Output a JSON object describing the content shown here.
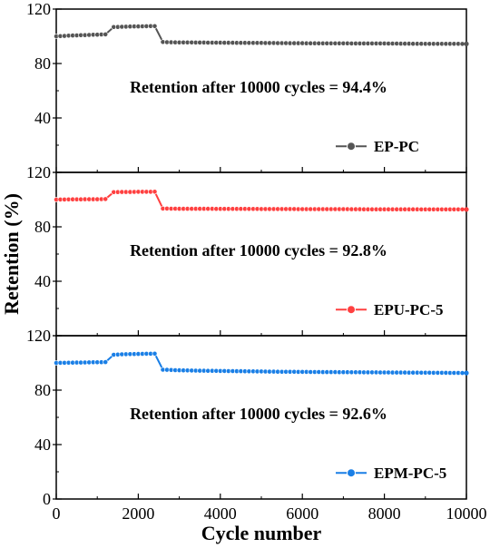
{
  "chart_data": {
    "type": "line",
    "layout": "stacked-panels-shared-x",
    "xlabel": "Cycle number",
    "ylabel": "Retention (%)",
    "xlim": [
      0,
      10000
    ],
    "xticks": [
      0,
      2000,
      4000,
      6000,
      8000,
      10000
    ],
    "ylim": [
      0,
      120
    ],
    "yticks": [
      0,
      40,
      80,
      120
    ],
    "grid": false,
    "legend_position": "bottom-right",
    "marker": "circle",
    "panels": [
      {
        "series_name": "EP-PC",
        "color": "#555555",
        "annotation": "Retention after 10000 cycles = 94.4%",
        "x": [
          0,
          200,
          400,
          600,
          800,
          1000,
          1200,
          1400,
          1600,
          1800,
          2000,
          2200,
          2400,
          2600,
          2800,
          3000,
          3500,
          4000,
          4500,
          5000,
          5500,
          6000,
          6500,
          7000,
          7500,
          8000,
          8500,
          9000,
          9500,
          10000
        ],
        "y": [
          100,
          100.3,
          100.6,
          100.8,
          101,
          101.2,
          101.4,
          106.8,
          107,
          107.2,
          107.3,
          107.4,
          107.5,
          95.8,
          95.6,
          95.5,
          95.4,
          95.3,
          95.2,
          95.1,
          95.0,
          94.9,
          94.8,
          94.8,
          94.7,
          94.7,
          94.6,
          94.5,
          94.5,
          94.4
        ]
      },
      {
        "series_name": "EPU-PC-5",
        "color": "#ff4040",
        "annotation": "Retention after 10000 cycles = 92.8%",
        "x": [
          0,
          200,
          400,
          600,
          800,
          1000,
          1200,
          1400,
          1600,
          1800,
          2000,
          2200,
          2400,
          2600,
          3000,
          3500,
          4000,
          4500,
          5000,
          5500,
          6000,
          6500,
          7000,
          7500,
          8000,
          8500,
          9000,
          9500,
          10000
        ],
        "y": [
          100,
          100.1,
          100.2,
          100.2,
          100.3,
          100.3,
          100.4,
          105.5,
          105.6,
          105.6,
          105.7,
          105.7,
          105.8,
          93.4,
          93.3,
          93.3,
          93.2,
          93.2,
          93.1,
          93.1,
          93.0,
          93.0,
          93.0,
          92.9,
          92.9,
          92.9,
          92.8,
          92.8,
          92.8
        ]
      },
      {
        "series_name": "EPM-PC-5",
        "color": "#1a7fe6",
        "annotation": "Retention after 10000 cycles = 92.6%",
        "x": [
          0,
          200,
          400,
          600,
          800,
          1000,
          1200,
          1400,
          1600,
          1800,
          2000,
          2200,
          2400,
          2600,
          3000,
          3500,
          4000,
          4500,
          5000,
          5500,
          6000,
          6500,
          7000,
          7500,
          8000,
          8500,
          9000,
          9500,
          10000
        ],
        "y": [
          100,
          100.1,
          100.2,
          100.3,
          100.4,
          100.5,
          100.6,
          106,
          106.3,
          106.5,
          106.6,
          106.7,
          106.8,
          95.0,
          94.6,
          94.3,
          94.1,
          93.9,
          93.7,
          93.5,
          93.4,
          93.3,
          93.2,
          93.1,
          93.0,
          92.9,
          92.8,
          92.7,
          92.6
        ]
      }
    ]
  }
}
